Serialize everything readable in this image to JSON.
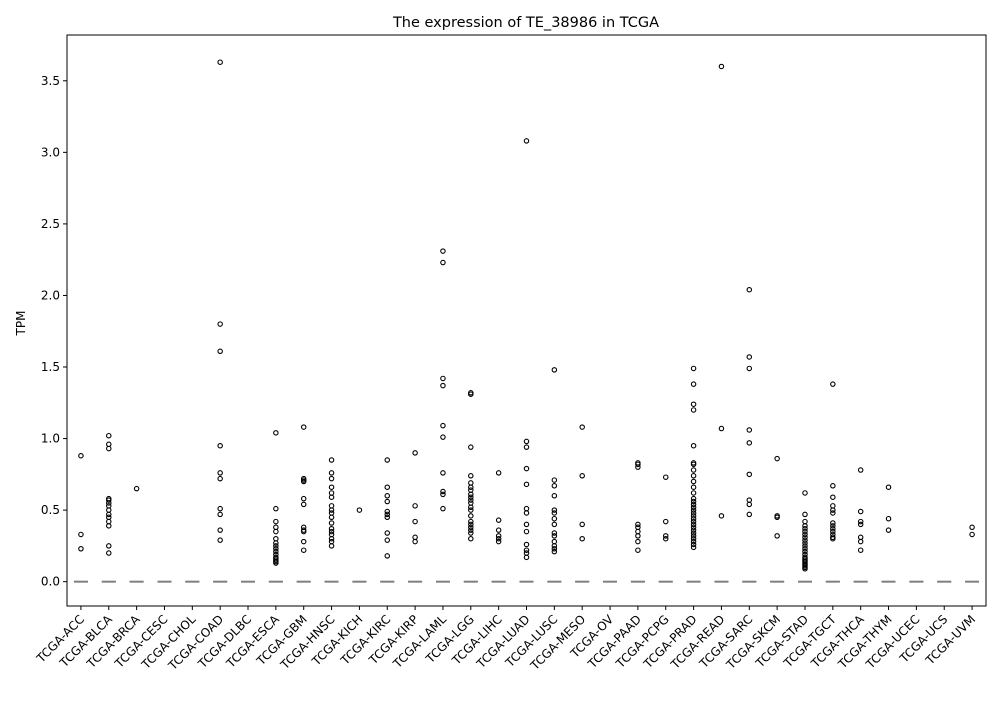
{
  "chart_data": {
    "type": "box",
    "title": "The expression of TE_38986 in TCGA",
    "xlabel": "",
    "ylabel": "TPM",
    "ylim": [
      -0.17,
      3.82
    ],
    "yticks": [
      0.0,
      0.5,
      1.0,
      1.5,
      2.0,
      2.5,
      3.0,
      3.5
    ],
    "ytick_labels": [
      "0.0",
      "0.5",
      "1.0",
      "1.5",
      "2.0",
      "2.5",
      "3.0",
      "3.5"
    ],
    "grid": false,
    "colors": {
      "median": "#7f7f7f",
      "box": "#000000",
      "flier": "#000000"
    },
    "categories": [
      "TCGA-ACC",
      "TCGA-BLCA",
      "TCGA-BRCA",
      "TCGA-CESC",
      "TCGA-CHOL",
      "TCGA-COAD",
      "TCGA-DLBC",
      "TCGA-ESCA",
      "TCGA-GBM",
      "TCGA-HNSC",
      "TCGA-KICH",
      "TCGA-KIRC",
      "TCGA-KIRP",
      "TCGA-LAML",
      "TCGA-LGG",
      "TCGA-LIHC",
      "TCGA-LUAD",
      "TCGA-LUSC",
      "TCGA-MESO",
      "TCGA-OV",
      "TCGA-PAAD",
      "TCGA-PCPG",
      "TCGA-PRAD",
      "TCGA-READ",
      "TCGA-SARC",
      "TCGA-SKCM",
      "TCGA-STAD",
      "TCGA-TGCT",
      "TCGA-THCA",
      "TCGA-THYM",
      "TCGA-UCEC",
      "TCGA-UCS",
      "TCGA-UVM"
    ],
    "medians": [
      0,
      0,
      0,
      0,
      0,
      0,
      0,
      0,
      0,
      0,
      0,
      0,
      0,
      0,
      0,
      0,
      0,
      0,
      0,
      0,
      0,
      0,
      0,
      0,
      0,
      0,
      0,
      0,
      0,
      0,
      0,
      0,
      0
    ],
    "outliers": [
      [
        0.88,
        0.33,
        0.23
      ],
      [
        1.02,
        0.96,
        0.93,
        0.58,
        0.57,
        0.55,
        0.53,
        0.5,
        0.47,
        0.45,
        0.42,
        0.39,
        0.25,
        0.2
      ],
      [
        0.65
      ],
      [],
      [],
      [
        3.63,
        1.8,
        1.61,
        0.95,
        0.76,
        0.72,
        0.51,
        0.47,
        0.36,
        0.29
      ],
      [],
      [
        1.04,
        0.51,
        0.42,
        0.38,
        0.35,
        0.3,
        0.27,
        0.25,
        0.23,
        0.21,
        0.19,
        0.17,
        0.16,
        0.15,
        0.14,
        0.13
      ],
      [
        1.08,
        0.72,
        0.71,
        0.7,
        0.58,
        0.54,
        0.38,
        0.36,
        0.35,
        0.28,
        0.22
      ],
      [
        0.85,
        0.76,
        0.72,
        0.66,
        0.62,
        0.59,
        0.53,
        0.5,
        0.48,
        0.45,
        0.41,
        0.37,
        0.35,
        0.33,
        0.3,
        0.28,
        0.25
      ],
      [
        0.5
      ],
      [
        0.85,
        0.66,
        0.6,
        0.56,
        0.49,
        0.47,
        0.45,
        0.34,
        0.29,
        0.18
      ],
      [
        0.9,
        0.53,
        0.42,
        0.31,
        0.28
      ],
      [
        2.31,
        2.23,
        1.42,
        1.37,
        1.09,
        1.01,
        0.76,
        0.63,
        0.61,
        0.51
      ],
      [
        1.32,
        1.31,
        0.94,
        0.74,
        0.69,
        0.66,
        0.64,
        0.61,
        0.59,
        0.57,
        0.55,
        0.52,
        0.5,
        0.46,
        0.42,
        0.4,
        0.38,
        0.36,
        0.34,
        0.3
      ],
      [
        0.76,
        0.43,
        0.36,
        0.32,
        0.3,
        0.28
      ],
      [
        3.08,
        0.98,
        0.94,
        0.79,
        0.68,
        0.51,
        0.48,
        0.4,
        0.35,
        0.26,
        0.22,
        0.2,
        0.17
      ],
      [
        1.48,
        0.71,
        0.67,
        0.6,
        0.5,
        0.48,
        0.44,
        0.4,
        0.34,
        0.32,
        0.28,
        0.25,
        0.23,
        0.21
      ],
      [
        1.08,
        0.74,
        0.4,
        0.3
      ],
      [],
      [
        0.83,
        0.82,
        0.8,
        0.4,
        0.38,
        0.35,
        0.32,
        0.28,
        0.22
      ],
      [
        0.73,
        0.42,
        0.32,
        0.3
      ],
      [
        1.49,
        1.38,
        1.24,
        1.2,
        0.95,
        0.83,
        0.82,
        0.78,
        0.74,
        0.7,
        0.66,
        0.62,
        0.58,
        0.56,
        0.54,
        0.52,
        0.5,
        0.48,
        0.46,
        0.44,
        0.42,
        0.4,
        0.38,
        0.36,
        0.34,
        0.32,
        0.3,
        0.28,
        0.26,
        0.24
      ],
      [
        3.6,
        1.07,
        0.46
      ],
      [
        2.04,
        1.57,
        1.49,
        1.06,
        0.97,
        0.75,
        0.57,
        0.54,
        0.47
      ],
      [
        0.86,
        0.46,
        0.45,
        0.32
      ],
      [
        0.62,
        0.47,
        0.42,
        0.39,
        0.37,
        0.35,
        0.33,
        0.31,
        0.29,
        0.27,
        0.25,
        0.23,
        0.21,
        0.19,
        0.17,
        0.16,
        0.15,
        0.14,
        0.13,
        0.12,
        0.11,
        0.1,
        0.09
      ],
      [
        1.38,
        0.67,
        0.59,
        0.53,
        0.5,
        0.48,
        0.41,
        0.39,
        0.37,
        0.35,
        0.33,
        0.31,
        0.3
      ],
      [
        0.78,
        0.49,
        0.42,
        0.4,
        0.31,
        0.28,
        0.22
      ],
      [
        0.66,
        0.44,
        0.36
      ],
      [],
      [],
      [
        0.38,
        0.33
      ]
    ]
  }
}
